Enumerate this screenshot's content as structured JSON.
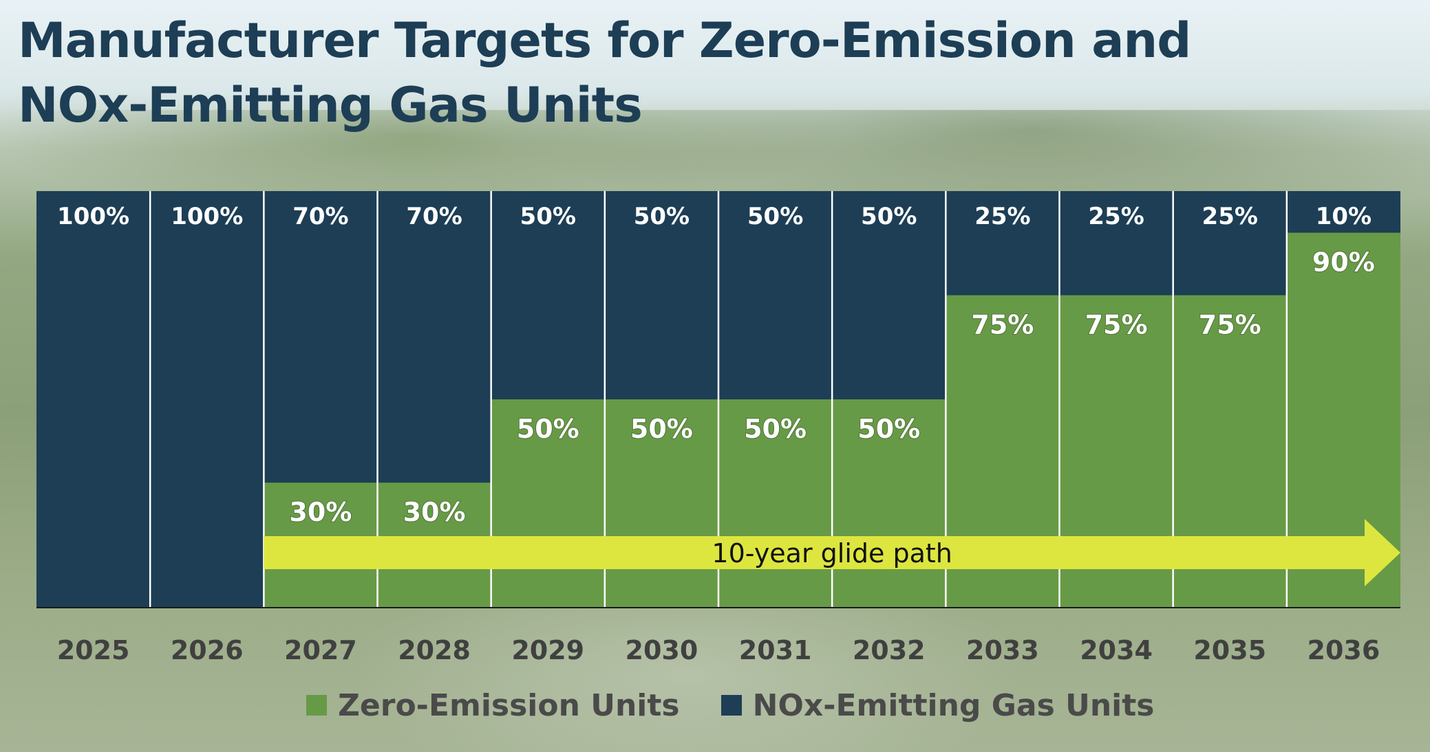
{
  "title": "Manufacturer Targets for Zero-Emission and NOx-Emitting Gas Units",
  "colors": {
    "zero_emission": "#679a46",
    "nox_emitting": "#1d3e55",
    "arrow": "#dde63f",
    "label_text": "#ffffff",
    "axis_text": "#404040"
  },
  "chart_data": {
    "type": "bar",
    "stacked": true,
    "normalized": true,
    "categories": [
      "2025",
      "2026",
      "2027",
      "2028",
      "2029",
      "2030",
      "2031",
      "2032",
      "2033",
      "2034",
      "2035",
      "2036"
    ],
    "series": [
      {
        "name": "Zero-Emission Units",
        "values": [
          0,
          0,
          30,
          30,
          50,
          50,
          50,
          50,
          75,
          75,
          75,
          90
        ],
        "labels": [
          "",
          "",
          "30%",
          "30%",
          "50%",
          "50%",
          "50%",
          "50%",
          "75%",
          "75%",
          "75%",
          "90%"
        ]
      },
      {
        "name": "NOx-Emitting Gas Units",
        "values": [
          100,
          100,
          70,
          70,
          50,
          50,
          50,
          50,
          25,
          25,
          25,
          10
        ],
        "labels": [
          "100%",
          "100%",
          "70%",
          "70%",
          "50%",
          "50%",
          "50%",
          "50%",
          "25%",
          "25%",
          "25%",
          "10%"
        ]
      }
    ],
    "ylim": [
      0,
      100
    ],
    "ylabel": "",
    "xlabel": "",
    "grid": false,
    "legend": "bottom",
    "annotation": {
      "text": "10-year glide path",
      "shape": "arrow",
      "from_category": "2027",
      "to_category": "2036"
    }
  }
}
